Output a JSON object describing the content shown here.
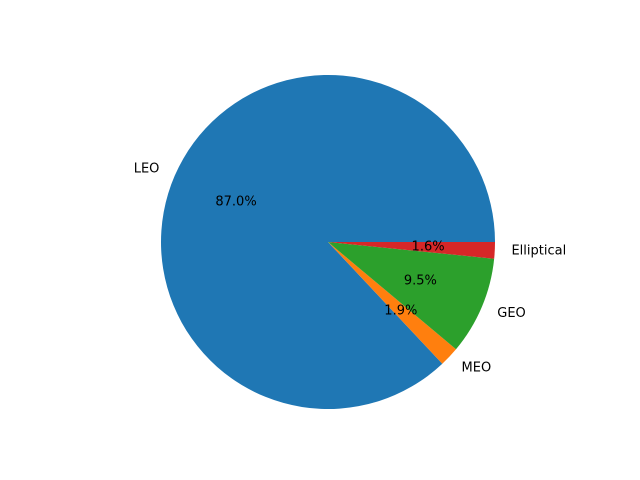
{
  "chart_data": {
    "type": "pie",
    "title": "",
    "slices": [
      {
        "label": "LEO",
        "value": 87.0,
        "pct_label": "87.0%",
        "color": "#1f77b4"
      },
      {
        "label": "MEO",
        "value": 1.9,
        "pct_label": "1.9%",
        "color": "#ff7f0e"
      },
      {
        "label": "GEO",
        "value": 9.5,
        "pct_label": "9.5%",
        "color": "#2ca02c"
      },
      {
        "label": "Elliptical",
        "value": 1.6,
        "pct_label": "1.6%",
        "color": "#d62728"
      }
    ]
  }
}
